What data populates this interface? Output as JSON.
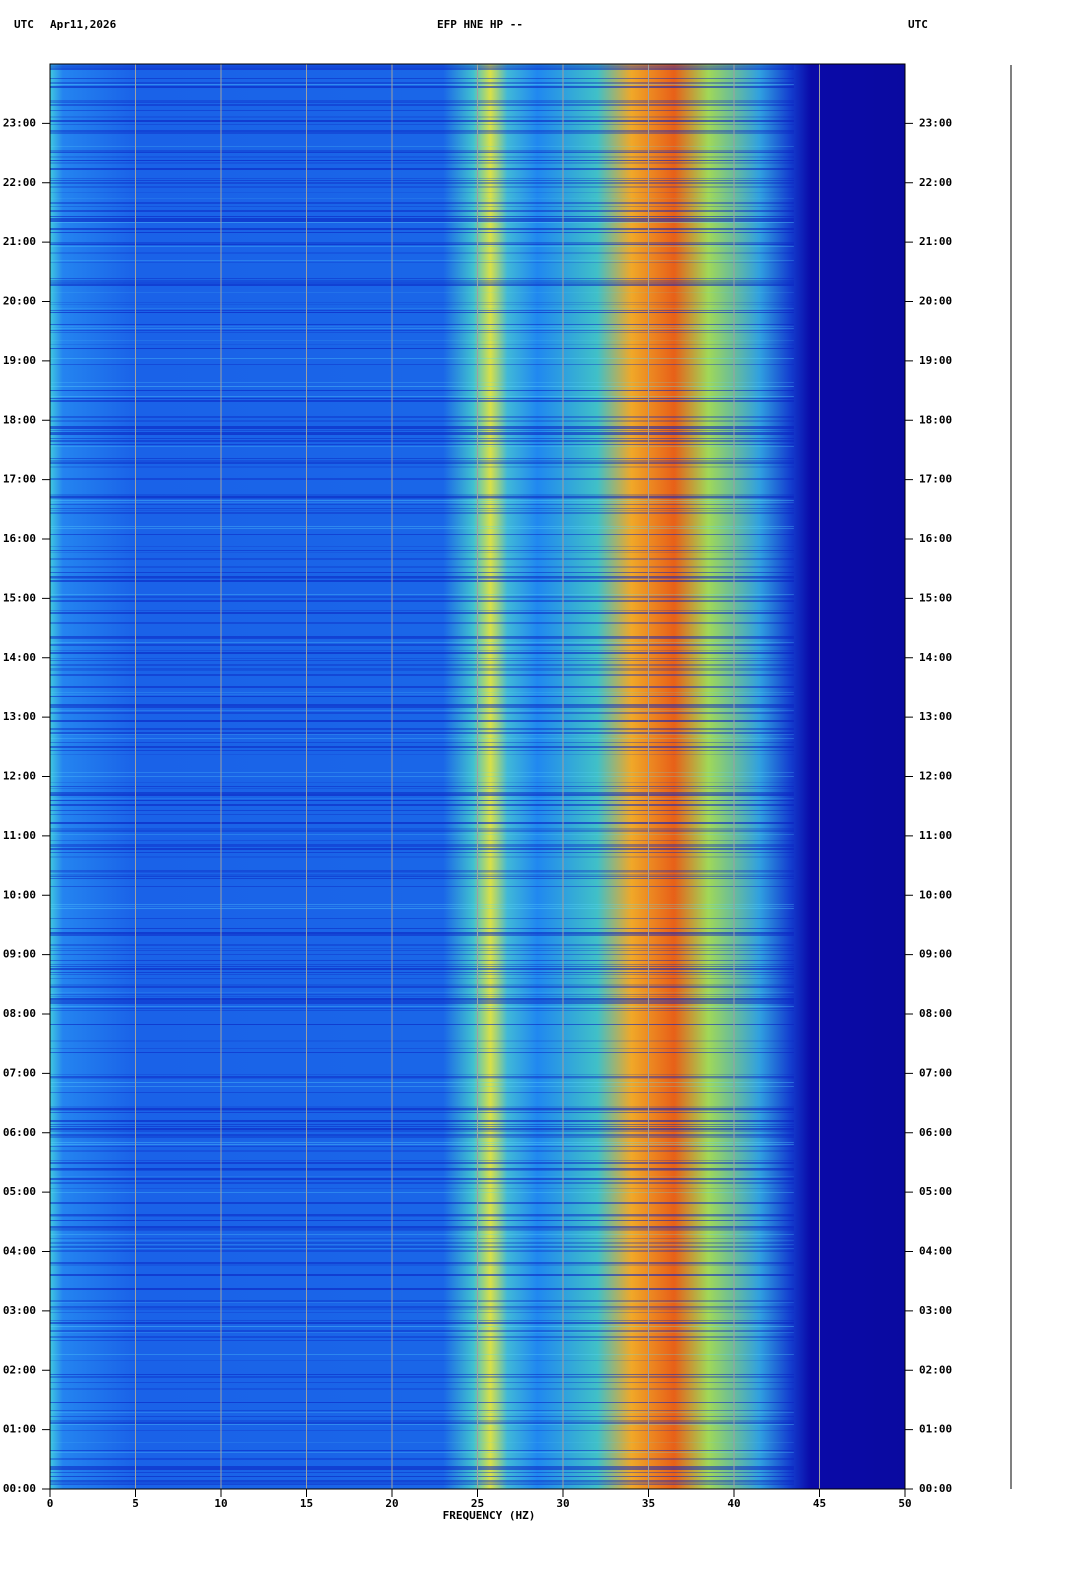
{
  "chart_data": {
    "type": "spectrogram",
    "title": "EFP HNE HP --",
    "date_label": "Apr11,2026",
    "timezone_left": "UTC",
    "timezone_right": "UTC",
    "xlabel": "FREQUENCY (HZ)",
    "xlim": [
      0,
      50
    ],
    "xticks": [
      0,
      5,
      10,
      15,
      20,
      25,
      30,
      35,
      40,
      45,
      50
    ],
    "ylim": [
      0,
      24
    ],
    "yticks": [
      {
        "value": 0,
        "label": "00:00"
      },
      {
        "value": 1,
        "label": "01:00"
      },
      {
        "value": 2,
        "label": "02:00"
      },
      {
        "value": 3,
        "label": "03:00"
      },
      {
        "value": 4,
        "label": "04:00"
      },
      {
        "value": 5,
        "label": "05:00"
      },
      {
        "value": 6,
        "label": "06:00"
      },
      {
        "value": 7,
        "label": "07:00"
      },
      {
        "value": 8,
        "label": "08:00"
      },
      {
        "value": 9,
        "label": "09:00"
      },
      {
        "value": 10,
        "label": "10:00"
      },
      {
        "value": 11,
        "label": "11:00"
      },
      {
        "value": 12,
        "label": "12:00"
      },
      {
        "value": 13,
        "label": "13:00"
      },
      {
        "value": 14,
        "label": "14:00"
      },
      {
        "value": 15,
        "label": "15:00"
      },
      {
        "value": 16,
        "label": "16:00"
      },
      {
        "value": 17,
        "label": "17:00"
      },
      {
        "value": 18,
        "label": "18:00"
      },
      {
        "value": 19,
        "label": "19:00"
      },
      {
        "value": 20,
        "label": "20:00"
      },
      {
        "value": 21,
        "label": "21:00"
      },
      {
        "value": 22,
        "label": "22:00"
      },
      {
        "value": 23,
        "label": "23:00"
      }
    ],
    "grid": true
  }
}
